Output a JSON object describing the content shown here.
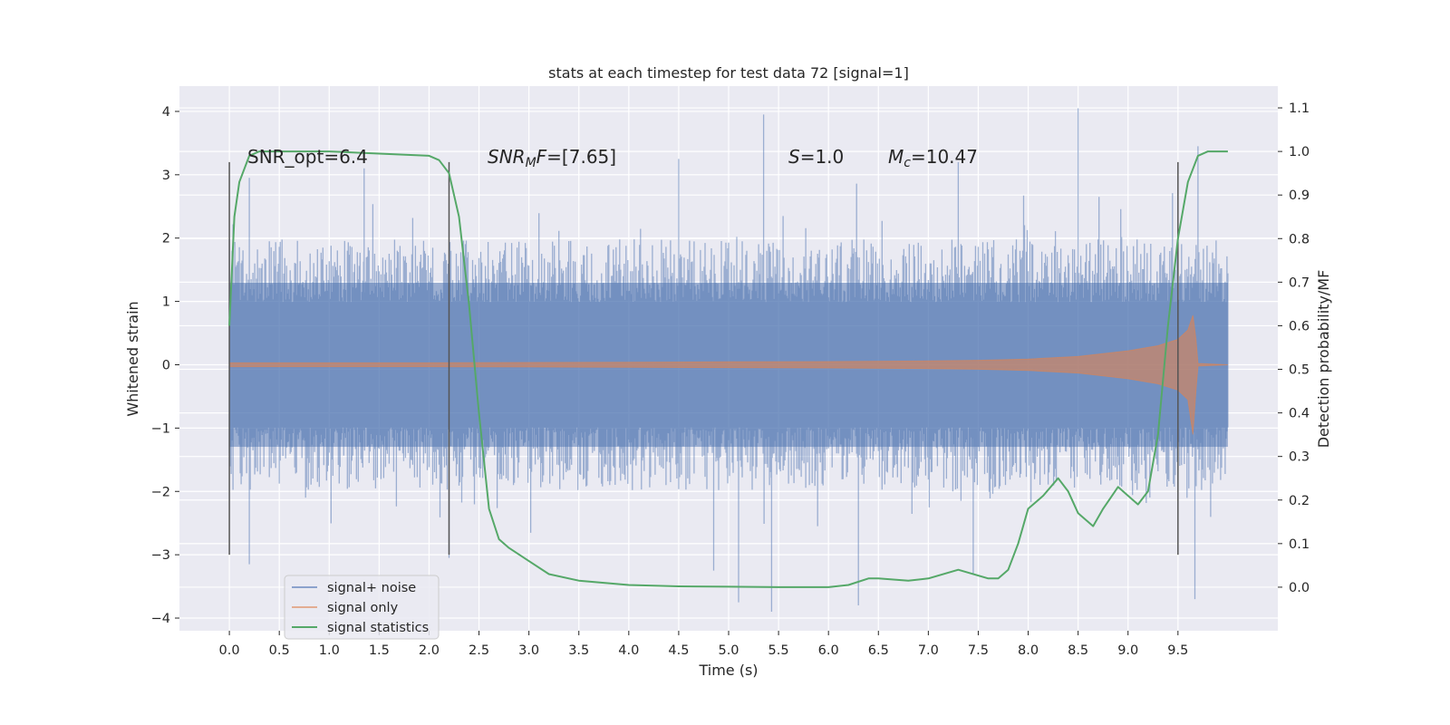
{
  "chart_data": {
    "type": "line",
    "title": "stats at each timestep for test data 72 [signal=1]",
    "xlabel": "Time (s)",
    "ylabel": "Whitened strain",
    "ylabel_right": "Detection probability/MF",
    "xlim": [
      -0.5,
      10.5
    ],
    "ylim": [
      -4.2,
      4.4
    ],
    "ylim_right": [
      -0.1,
      1.15
    ],
    "x_ticks": [
      "0.0",
      "0.5",
      "1.0",
      "1.5",
      "2.0",
      "2.5",
      "3.0",
      "3.5",
      "4.0",
      "4.5",
      "5.0",
      "5.5",
      "6.0",
      "6.5",
      "7.0",
      "7.5",
      "8.0",
      "8.5",
      "9.0",
      "9.5"
    ],
    "y_ticks": [
      "4",
      "3",
      "2",
      "1",
      "0",
      "−1",
      "−2",
      "−3",
      "−4"
    ],
    "y_ticks_right": [
      "1.1",
      "1.0",
      "0.9",
      "0.8",
      "0.7",
      "0.6",
      "0.5",
      "0.4",
      "0.3",
      "0.2",
      "0.1",
      "0.0"
    ],
    "grid": true,
    "legend_position": "lower-left",
    "colors": {
      "background": "#eaeaf2",
      "noise": "#4c72b0",
      "signal": "#dd8452",
      "statistics": "#55a868",
      "markers": "#555555"
    },
    "vertical_markers_x": [
      0.0,
      2.2,
      9.5
    ],
    "annotations": {
      "snr_opt": "SNR_opt=6.4",
      "snr_mf_base": "SNR",
      "snr_mf_sub": "M",
      "snr_mf_tail": "F",
      "snr_mf_value": "=[7.65]",
      "s_symbol": "S",
      "s_value": "=1.0",
      "mc_base": "M",
      "mc_sub": "c",
      "mc_value": "=10.47"
    },
    "series": [
      {
        "name": "signal+ noise",
        "kind": "whitened strain (noise-dominated, approx. envelope)",
        "x_range": [
          0.0,
          10.0
        ],
        "lower_envelope": -1.8,
        "upper_envelope": 1.8,
        "positive_extremes": [
          [
            0.2,
            2.95
          ],
          [
            1.35,
            3.1
          ],
          [
            4.5,
            3.25
          ],
          [
            5.35,
            3.95
          ],
          [
            7.3,
            3.2
          ],
          [
            8.5,
            4.05
          ],
          [
            9.7,
            3.45
          ]
        ],
        "negative_extremes": [
          [
            0.2,
            -3.15
          ],
          [
            2.2,
            -3.05
          ],
          [
            4.85,
            -3.25
          ],
          [
            5.1,
            -3.75
          ],
          [
            5.43,
            -3.9
          ],
          [
            6.3,
            -3.8
          ],
          [
            7.45,
            -3.3
          ],
          [
            9.67,
            -3.7
          ]
        ]
      },
      {
        "name": "signal only",
        "kind": "chirp amplitude envelope",
        "x": [
          0.0,
          1.0,
          2.0,
          3.0,
          4.0,
          5.0,
          6.0,
          7.0,
          7.5,
          8.0,
          8.5,
          9.0,
          9.3,
          9.5,
          9.6,
          9.65,
          9.68,
          9.7,
          10.0
        ],
        "amplitude": [
          0.03,
          0.03,
          0.03,
          0.035,
          0.04,
          0.045,
          0.05,
          0.06,
          0.07,
          0.09,
          0.13,
          0.22,
          0.3,
          0.4,
          0.55,
          0.75,
          0.4,
          0.02,
          0.0
        ],
        "amplitude_upper_peak": 0.78,
        "amplitude_lower_peak": -1.1
      },
      {
        "name": "signal statistics",
        "kind": "detection probability (right axis)",
        "x": [
          0.0,
          0.05,
          0.1,
          0.2,
          0.3,
          0.5,
          1.0,
          1.5,
          2.0,
          2.1,
          2.2,
          2.3,
          2.4,
          2.5,
          2.6,
          2.7,
          2.8,
          3.0,
          3.2,
          3.5,
          4.0,
          4.5,
          5.0,
          5.5,
          6.0,
          6.2,
          6.4,
          6.5,
          6.8,
          7.0,
          7.3,
          7.6,
          7.7,
          7.8,
          7.9,
          8.0,
          8.15,
          8.3,
          8.4,
          8.5,
          8.65,
          8.75,
          8.9,
          9.0,
          9.1,
          9.2,
          9.3,
          9.4,
          9.5,
          9.6,
          9.7,
          9.8,
          10.0
        ],
        "values": [
          0.6,
          0.85,
          0.93,
          0.99,
          1.0,
          1.0,
          1.0,
          0.995,
          0.99,
          0.98,
          0.95,
          0.85,
          0.65,
          0.4,
          0.18,
          0.11,
          0.09,
          0.06,
          0.03,
          0.015,
          0.005,
          0.002,
          0.001,
          0.0,
          0.0,
          0.005,
          0.02,
          0.02,
          0.015,
          0.02,
          0.04,
          0.02,
          0.02,
          0.04,
          0.1,
          0.18,
          0.21,
          0.25,
          0.22,
          0.17,
          0.14,
          0.18,
          0.23,
          0.21,
          0.19,
          0.22,
          0.35,
          0.6,
          0.8,
          0.93,
          0.99,
          1.0,
          1.0
        ]
      }
    ]
  }
}
